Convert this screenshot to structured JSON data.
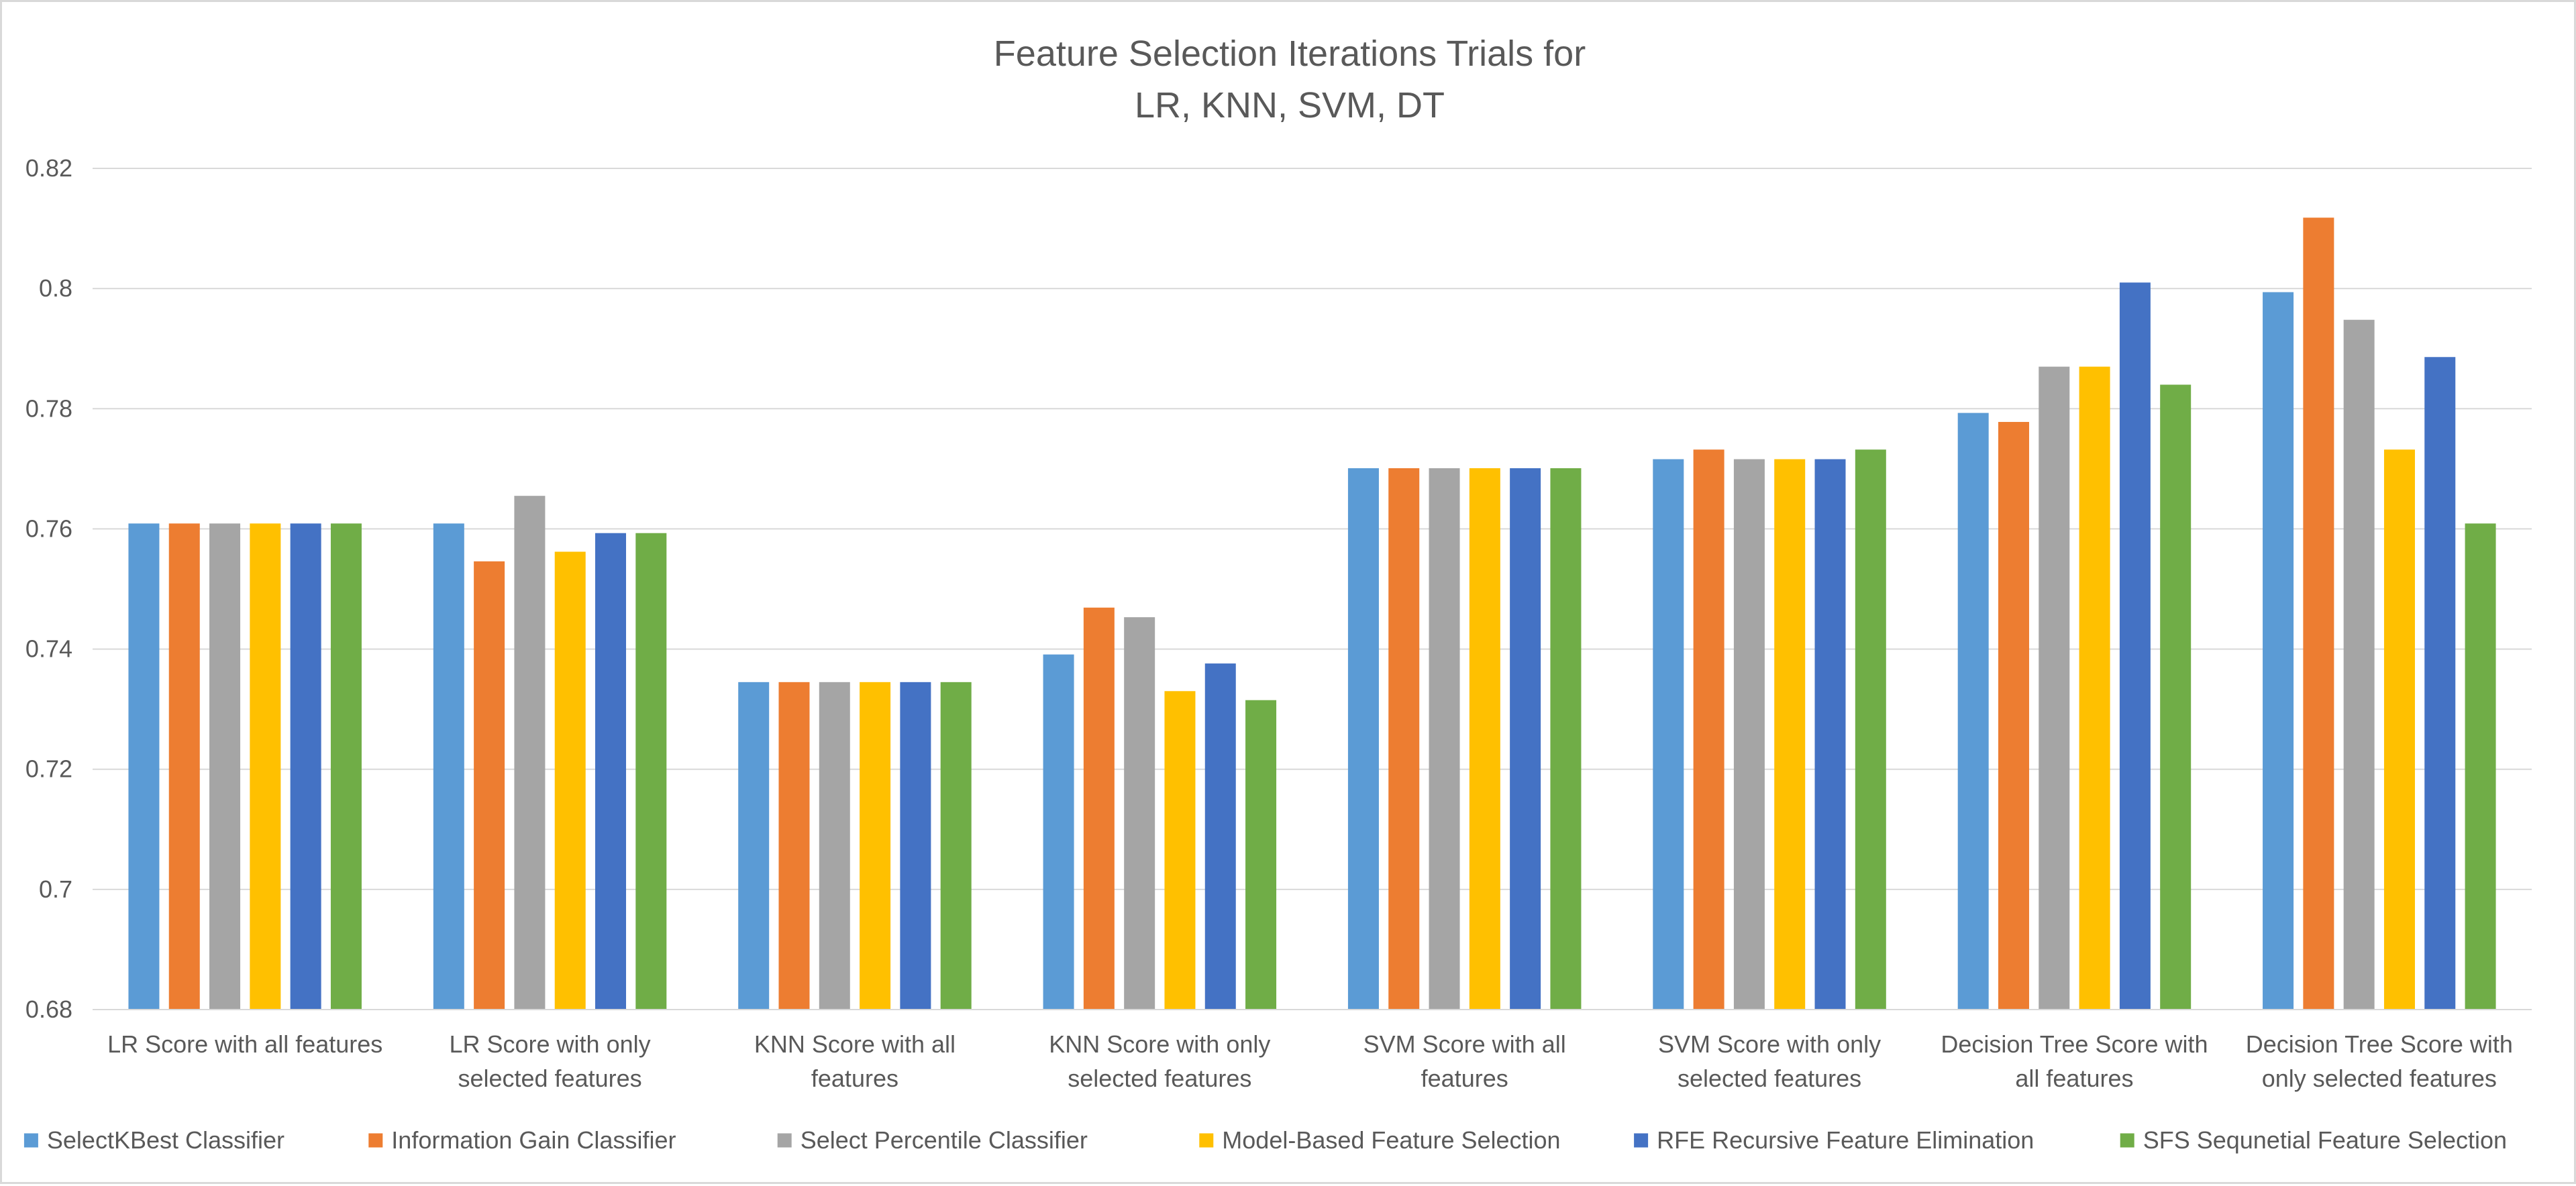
{
  "chart_data": {
    "type": "bar",
    "title": [
      "Feature Selection Iterations Trials for",
      "LR, KNN, SVM, DT"
    ],
    "ylim": [
      0.68,
      0.82
    ],
    "yticks": [
      "0.82",
      "0.8",
      "0.78",
      "0.76",
      "0.74",
      "0.72",
      "0.7",
      "0.68"
    ],
    "ytick_values": [
      0.82,
      0.8,
      0.78,
      0.76,
      0.74,
      0.72,
      0.7,
      0.68
    ],
    "grid": "horizontal",
    "legend_position": "bottom",
    "categories": [
      [
        "LR Score with all features"
      ],
      [
        "LR Score with only",
        "selected features"
      ],
      [
        "KNN Score with all",
        "features"
      ],
      [
        "KNN Score with only",
        "selected features"
      ],
      [
        "SVM Score with all",
        "features"
      ],
      [
        "SVM Score with only",
        "selected features"
      ],
      [
        "Decision Tree Score with",
        "all features"
      ],
      [
        "Decision Tree Score with",
        "only selected features"
      ]
    ],
    "series": [
      {
        "name": "SelectKBest Classifier",
        "color": "#5b9bd5",
        "values": [
          0.7609,
          0.7609,
          0.7345,
          0.7391,
          0.7701,
          0.7716,
          0.7793,
          0.7994
        ]
      },
      {
        "name": "Information Gain Classifier",
        "color": "#ed7d31",
        "values": [
          0.7609,
          0.7546,
          0.7345,
          0.7469,
          0.7701,
          0.7732,
          0.7778,
          0.8118
        ]
      },
      {
        "name": "Select Percentile Classifier",
        "color": "#a5a5a5",
        "values": [
          0.7609,
          0.7655,
          0.7345,
          0.7453,
          0.7701,
          0.7716,
          0.787,
          0.7948
        ]
      },
      {
        "name": "Model-Based Feature Selection",
        "color": "#ffc000",
        "values": [
          0.7609,
          0.7562,
          0.7345,
          0.733,
          0.7701,
          0.7716,
          0.787,
          0.7732
        ]
      },
      {
        "name": "RFE Recursive Feature Elimination",
        "color": "#4472c4",
        "values": [
          0.7609,
          0.7593,
          0.7345,
          0.7376,
          0.7701,
          0.7716,
          0.801,
          0.7886
        ]
      },
      {
        "name": "SFS Sequnetial Feature Selection",
        "color": "#70ad47",
        "values": [
          0.7609,
          0.7593,
          0.7345,
          0.7315,
          0.7701,
          0.7732,
          0.784,
          0.7609
        ]
      }
    ]
  }
}
